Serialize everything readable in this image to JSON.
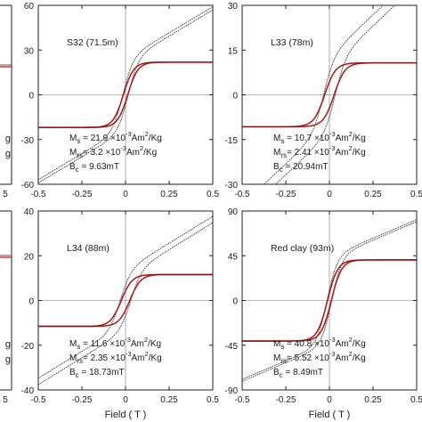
{
  "chart_data": {
    "type": "line",
    "x_axis_label": "Field ( T )",
    "colors": {
      "hysteresis": "#d42a2a",
      "raw": "#333333",
      "axis": "#222222"
    },
    "partial_left": {
      "top_ticks": [
        "g",
        "g"
      ],
      "bottom_ticks": [
        "g",
        "g"
      ],
      "xtick_top": "5",
      "xtick_bottom": "5"
    },
    "panels": [
      {
        "id": "s32",
        "sample_label": "S32  (71.5m)",
        "xlim": [
          -0.5,
          0.5
        ],
        "xticks": [
          "-0.5",
          "-0.25",
          "0",
          "0.25",
          "0.5"
        ],
        "show_xlabel": false,
        "ylim": [
          -60,
          60
        ],
        "yticks": [
          "60",
          "30",
          "0",
          "-30",
          "-60"
        ],
        "ytick_values": [
          60,
          30,
          0,
          -30,
          -60
        ],
        "Ms": 21.9,
        "Bc": 0.00963,
        "raw_slope": 70,
        "k": 17,
        "params": [
          {
            "sym": "M",
            "sub": "s",
            "text": " = 21.9 ×10",
            "sup": "-3",
            "unit": "Am",
            "unitSup": "2",
            "tail": "/Kg"
          },
          {
            "sym": "M",
            "sub": "rs",
            "text": "=  3.2 ×10",
            "sup": "-3",
            "unit": "Am",
            "unitSup": "2",
            "tail": "/Kg"
          },
          {
            "sym": "B",
            "sub": "c",
            "text": " = 9.63mT"
          }
        ]
      },
      {
        "id": "l33",
        "sample_label": "L33  (78m)",
        "xlim": [
          -0.5,
          0.5
        ],
        "xticks": [
          "-0.5",
          "-0.25",
          "0",
          "0.25",
          "0.5"
        ],
        "show_xlabel": false,
        "ylim": [
          -30,
          30
        ],
        "yticks": [
          "30",
          "15",
          "0",
          "-15",
          "-30"
        ],
        "ytick_values": [
          30,
          15,
          0,
          -15,
          -30
        ],
        "Ms": 10.7,
        "Bc": 0.02094,
        "raw_slope": 55,
        "k": 16,
        "params": [
          {
            "sym": "M",
            "sub": "s",
            "text": " = 10.7 ×10",
            "sup": "-3",
            "unit": "Am",
            "unitSup": "2",
            "tail": "/Kg"
          },
          {
            "sym": "M",
            "sub": "rs",
            "text": "= 2.41 ×10",
            "sup": "-3",
            "unit": "Am",
            "unitSup": "2",
            "tail": "/Kg"
          },
          {
            "sym": "B",
            "sub": "c",
            "text": " = 20.94mT"
          }
        ]
      },
      {
        "id": "l34",
        "sample_label": "L34  (88m)",
        "xlim": [
          -0.5,
          0.5
        ],
        "xticks": [
          "-0.5",
          "-0.25",
          "0",
          "0.25",
          "0.5"
        ],
        "show_xlabel": true,
        "ylim": [
          -40,
          40
        ],
        "yticks": [
          "40",
          "20",
          "0",
          "-20",
          "-40"
        ],
        "ytick_values": [
          40,
          20,
          0,
          -20,
          -40
        ],
        "Ms": 11.6,
        "Bc": 0.01873,
        "raw_slope": 48,
        "k": 16,
        "params": [
          {
            "sym": "M",
            "sub": "s",
            "text": " = 11.6 ×10",
            "sup": "-3",
            "unit": "Am",
            "unitSup": "2",
            "tail": "/Kg"
          },
          {
            "sym": "M",
            "sub": "rs",
            "text": "= 2.35 ×10",
            "sup": "-3",
            "unit": "Am",
            "unitSup": "2",
            "tail": "/Kg"
          },
          {
            "sym": "B",
            "sub": "c",
            "text": " = 18.73mT"
          }
        ]
      },
      {
        "id": "redclay",
        "sample_label": "Red clay  (93m)",
        "xlim": [
          -0.5,
          0.5
        ],
        "xticks": [
          "-0.5",
          "-0.25",
          "0",
          "0.25",
          "0.5"
        ],
        "show_xlabel": true,
        "ylim": [
          -90,
          90
        ],
        "yticks": [
          "90",
          "45",
          "0",
          "-45",
          "-90"
        ],
        "ytick_values": [
          90,
          45,
          0,
          -45,
          -90
        ],
        "Ms": 40.8,
        "Bc": 0.00849,
        "raw_slope": 75,
        "k": 17,
        "params": [
          {
            "sym": "M",
            "sub": "s",
            "text": " = 40.8 ×10",
            "sup": "-3",
            "unit": "Am",
            "unitSup": "2",
            "tail": "/Kg"
          },
          {
            "sym": "M",
            "sub": "rs",
            "text": "= 5.52 ×10",
            "sup": "-3",
            "unit": "Am",
            "unitSup": "2",
            "tail": "/Kg"
          },
          {
            "sym": "B",
            "sub": "c",
            "text": " = 8.49mT"
          }
        ]
      }
    ]
  }
}
